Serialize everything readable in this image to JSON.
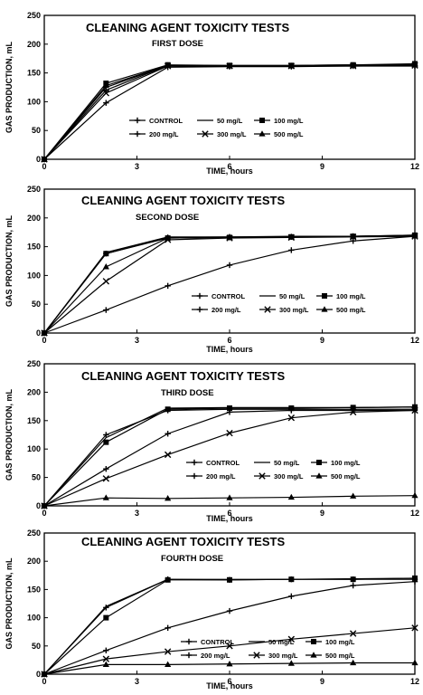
{
  "chart_data": [
    {
      "type": "line",
      "title": "CLEANING AGENT TOXICITY TESTS",
      "subtitle": "FIRST DOSE",
      "xlabel": "TIME, hours",
      "ylabel": "GAS PRODUCTION, mL",
      "xlim": [
        0,
        12
      ],
      "ylim": [
        0,
        250
      ],
      "xticks": [
        "0",
        "3",
        "6",
        "9",
        "12"
      ],
      "yticks": [
        "0",
        "50",
        "100",
        "150",
        "200",
        "250"
      ],
      "legend": "lower-center",
      "series": [
        {
          "name": "CONTROL",
          "marker": "plus",
          "points": [
            [
              0,
              0
            ],
            [
              2,
              120
            ],
            [
              4,
              163
            ],
            [
              6,
              162
            ],
            [
              8,
              162
            ],
            [
              10,
              163
            ],
            [
              12,
              163
            ]
          ]
        },
        {
          "name": "50 mg/L",
          "marker": "none",
          "points": [
            [
              0,
              0
            ],
            [
              2,
              125
            ],
            [
              4,
              163
            ],
            [
              6,
              163
            ],
            [
              8,
              163
            ],
            [
              10,
              164
            ],
            [
              12,
              164
            ]
          ]
        },
        {
          "name": "100 mg/L",
          "marker": "square",
          "points": [
            [
              0,
              0
            ],
            [
              2,
              132
            ],
            [
              4,
              164
            ],
            [
              6,
              163
            ],
            [
              8,
              163
            ],
            [
              10,
              164
            ],
            [
              12,
              166
            ]
          ]
        },
        {
          "name": "200 mg/L",
          "marker": "plus",
          "points": [
            [
              0,
              0
            ],
            [
              2,
              98
            ],
            [
              4,
              160
            ],
            [
              6,
              161
            ],
            [
              8,
              161
            ],
            [
              10,
              162
            ],
            [
              12,
              162
            ]
          ]
        },
        {
          "name": "300 mg/L",
          "marker": "x",
          "points": [
            [
              0,
              0
            ],
            [
              2,
              115
            ],
            [
              4,
              162
            ],
            [
              6,
              162
            ],
            [
              8,
              162
            ],
            [
              10,
              162
            ],
            [
              12,
              163
            ]
          ]
        },
        {
          "name": "500 mg/L",
          "marker": "triangle",
          "points": [
            [
              0,
              0
            ],
            [
              2,
              128
            ],
            [
              4,
              163
            ],
            [
              6,
              162
            ],
            [
              8,
              162
            ],
            [
              10,
              163
            ],
            [
              12,
              164
            ]
          ]
        }
      ]
    },
    {
      "type": "line",
      "title": "CLEANING AGENT TOXICITY TESTS",
      "subtitle": "SECOND DOSE",
      "xlabel": "TIME, hours",
      "ylabel": "GAS PRODUCTION, mL",
      "xlim": [
        0,
        12
      ],
      "ylim": [
        0,
        250
      ],
      "xticks": [
        "0",
        "3",
        "6",
        "9",
        "12"
      ],
      "yticks": [
        "0",
        "50",
        "100",
        "150",
        "200",
        "250"
      ],
      "legend": "lower-right",
      "series": [
        {
          "name": "CONTROL",
          "marker": "plus",
          "points": [
            [
              0,
              0
            ],
            [
              2,
              138
            ],
            [
              4,
              166
            ],
            [
              6,
              167
            ],
            [
              8,
              167
            ],
            [
              10,
              168
            ],
            [
              12,
              169
            ]
          ]
        },
        {
          "name": "50 mg/L",
          "marker": "none",
          "points": [
            [
              0,
              0
            ],
            [
              2,
              140
            ],
            [
              4,
              167
            ],
            [
              6,
              167
            ],
            [
              8,
              168
            ],
            [
              10,
              168
            ],
            [
              12,
              170
            ]
          ]
        },
        {
          "name": "100 mg/L",
          "marker": "square",
          "points": [
            [
              0,
              0
            ],
            [
              2,
              138
            ],
            [
              4,
              165
            ],
            [
              6,
              166
            ],
            [
              8,
              167
            ],
            [
              10,
              168
            ],
            [
              12,
              170
            ]
          ]
        },
        {
          "name": "200 mg/L",
          "marker": "plus",
          "points": [
            [
              0,
              0
            ],
            [
              2,
              40
            ],
            [
              4,
              82
            ],
            [
              6,
              118
            ],
            [
              8,
              144
            ],
            [
              10,
              160
            ],
            [
              12,
              168
            ]
          ]
        },
        {
          "name": "300 mg/L",
          "marker": "x",
          "points": [
            [
              0,
              0
            ],
            [
              2,
              90
            ],
            [
              4,
              162
            ],
            [
              6,
              165
            ],
            [
              8,
              166
            ],
            [
              10,
              167
            ],
            [
              12,
              168
            ]
          ]
        },
        {
          "name": "500 mg/L",
          "marker": "triangle",
          "points": [
            [
              0,
              0
            ],
            [
              2,
              115
            ],
            [
              4,
              165
            ],
            [
              6,
              166
            ],
            [
              8,
              167
            ],
            [
              10,
              168
            ],
            [
              12,
              169
            ]
          ]
        }
      ]
    },
    {
      "type": "line",
      "title": "CLEANING AGENT TOXICITY TESTS",
      "subtitle": "THIRD DOSE",
      "xlabel": "TIME, hours",
      "ylabel": "GAS PRODUCTION, mL",
      "xlim": [
        0,
        12
      ],
      "ylim": [
        0,
        250
      ],
      "xticks": [
        "0",
        "3",
        "6",
        "9",
        "12"
      ],
      "yticks": [
        "0",
        "50",
        "100",
        "150",
        "200",
        "250"
      ],
      "legend": "lower-center",
      "series": [
        {
          "name": "CONTROL",
          "marker": "plus",
          "points": [
            [
              0,
              0
            ],
            [
              2,
              125
            ],
            [
              4,
              168
            ],
            [
              6,
              170
            ],
            [
              8,
              170
            ],
            [
              10,
              170
            ],
            [
              12,
              170
            ]
          ]
        },
        {
          "name": "50 mg/L",
          "marker": "none",
          "points": [
            [
              0,
              0
            ],
            [
              2,
              120
            ],
            [
              4,
              172
            ],
            [
              6,
              173
            ],
            [
              8,
              173
            ],
            [
              10,
              173
            ],
            [
              12,
              174
            ]
          ]
        },
        {
          "name": "100 mg/L",
          "marker": "square",
          "points": [
            [
              0,
              0
            ],
            [
              2,
              112
            ],
            [
              4,
              170
            ],
            [
              6,
              172
            ],
            [
              8,
              172
            ],
            [
              10,
              173
            ],
            [
              12,
              174
            ]
          ]
        },
        {
          "name": "200 mg/L",
          "marker": "plus",
          "points": [
            [
              0,
              0
            ],
            [
              2,
              65
            ],
            [
              4,
              127
            ],
            [
              6,
              165
            ],
            [
              8,
              168
            ],
            [
              10,
              168
            ],
            [
              12,
              168
            ]
          ]
        },
        {
          "name": "300 mg/L",
          "marker": "x",
          "points": [
            [
              0,
              0
            ],
            [
              2,
              48
            ],
            [
              4,
              90
            ],
            [
              6,
              128
            ],
            [
              8,
              155
            ],
            [
              10,
              165
            ],
            [
              12,
              168
            ]
          ]
        },
        {
          "name": "500 mg/L",
          "marker": "triangle",
          "points": [
            [
              0,
              0
            ],
            [
              2,
              14
            ],
            [
              4,
              13
            ],
            [
              6,
              14
            ],
            [
              8,
              15
            ],
            [
              10,
              17
            ],
            [
              12,
              18
            ]
          ]
        }
      ]
    },
    {
      "type": "line",
      "title": "CLEANING AGENT TOXICITY TESTS",
      "subtitle": "FOURTH DOSE",
      "xlabel": "TIME, hours",
      "ylabel": "GAS PRODUCTION, mL",
      "xlim": [
        0,
        12
      ],
      "ylim": [
        0,
        250
      ],
      "xticks": [
        "0",
        "3",
        "6",
        "9",
        "12"
      ],
      "yticks": [
        "0",
        "50",
        "100",
        "150",
        "200",
        "250"
      ],
      "legend": "lower-center",
      "series": [
        {
          "name": "CONTROL",
          "marker": "plus",
          "points": [
            [
              0,
              0
            ],
            [
              2,
              118
            ],
            [
              4,
              168
            ],
            [
              6,
              167
            ],
            [
              8,
              168
            ],
            [
              10,
              168
            ],
            [
              12,
              168
            ]
          ]
        },
        {
          "name": "50 mg/L",
          "marker": "none",
          "points": [
            [
              0,
              0
            ],
            [
              2,
              120
            ],
            [
              4,
              168
            ],
            [
              6,
              168
            ],
            [
              8,
              168
            ],
            [
              10,
              169
            ],
            [
              12,
              170
            ]
          ]
        },
        {
          "name": "100 mg/L",
          "marker": "square",
          "points": [
            [
              0,
              0
            ],
            [
              2,
              100
            ],
            [
              4,
              167
            ],
            [
              6,
              167
            ],
            [
              8,
              168
            ],
            [
              10,
              168
            ],
            [
              12,
              170
            ]
          ]
        },
        {
          "name": "200 mg/L",
          "marker": "plus",
          "points": [
            [
              0,
              0
            ],
            [
              2,
              42
            ],
            [
              4,
              82
            ],
            [
              6,
              112
            ],
            [
              8,
              138
            ],
            [
              10,
              157
            ],
            [
              12,
              164
            ]
          ]
        },
        {
          "name": "300 mg/L",
          "marker": "x",
          "points": [
            [
              0,
              0
            ],
            [
              2,
              27
            ],
            [
              4,
              40
            ],
            [
              6,
              50
            ],
            [
              8,
              62
            ],
            [
              10,
              72
            ],
            [
              12,
              82
            ]
          ]
        },
        {
          "name": "500 mg/L",
          "marker": "triangle",
          "points": [
            [
              0,
              0
            ],
            [
              2,
              17
            ],
            [
              4,
              17
            ],
            [
              6,
              18
            ],
            [
              8,
              19
            ],
            [
              10,
              20
            ],
            [
              12,
              20
            ]
          ]
        }
      ]
    }
  ]
}
